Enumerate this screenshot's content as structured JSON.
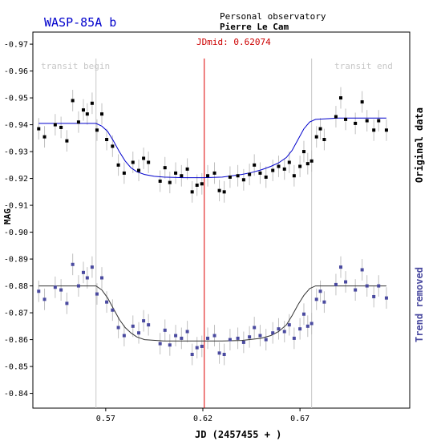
{
  "chart_data": {
    "type": "scatter",
    "title": "WASP-85A b",
    "observer_label": "Personal observatory",
    "observer_name": "Pierre Le Cam",
    "jdmid_label": "JDmid: 0.62074",
    "jdmid": 0.62074,
    "transit_begin_label": "transit begin",
    "transit_end_label": "transit end",
    "transit_begin": 0.565,
    "transit_end": 0.676,
    "xlabel": "JD (2457455 + )",
    "ylabel": "MAG",
    "xlim": [
      0.5325,
      0.7265
    ],
    "ylim": [
      -0.9745,
      -0.8345
    ],
    "x_ticks": [
      0.57,
      0.62,
      0.67
    ],
    "x_tick_labels": [
      "0.57",
      "0.62",
      "0.67"
    ],
    "y_ticks": [
      -0.97,
      -0.96,
      -0.95,
      -0.94,
      -0.93,
      -0.92,
      -0.91,
      -0.9,
      -0.89,
      -0.88,
      -0.87,
      -0.86,
      -0.85,
      -0.84
    ],
    "y_tick_labels": [
      "-0.97",
      "-0.96",
      "-0.95",
      "-0.94",
      "-0.93",
      "-0.92",
      "-0.91",
      "-0.90",
      "-0.89",
      "-0.88",
      "-0.87",
      "-0.86",
      "-0.85",
      "-0.84"
    ],
    "colors": {
      "original_points": "#000000",
      "original_model": "#0000cc",
      "detrended_points": "#4a4aa0",
      "detrended_model": "#333333",
      "jdmid_line": "#dd0000",
      "transit_lines": "#c8c8c8",
      "error_bars": "#c0c0c0",
      "title": "#0000cc",
      "jdmid_text": "#cc0000",
      "right_label_original": "#000000",
      "right_label_detrended": "#4a4aa0"
    },
    "error_bar": 0.004,
    "series": [
      {
        "name": "Original data",
        "marker": "square",
        "points": [
          [
            0.5355,
            -0.9385
          ],
          [
            0.5385,
            -0.9355
          ],
          [
            0.544,
            -0.94
          ],
          [
            0.547,
            -0.939
          ],
          [
            0.55,
            -0.934
          ],
          [
            0.553,
            -0.949
          ],
          [
            0.556,
            -0.941
          ],
          [
            0.5585,
            -0.9455
          ],
          [
            0.5605,
            -0.944
          ],
          [
            0.563,
            -0.948
          ],
          [
            0.5655,
            -0.938
          ],
          [
            0.568,
            -0.944
          ],
          [
            0.5705,
            -0.9345
          ],
          [
            0.5735,
            -0.932
          ],
          [
            0.5765,
            -0.925
          ],
          [
            0.5795,
            -0.922
          ],
          [
            0.584,
            -0.926
          ],
          [
            0.587,
            -0.923
          ],
          [
            0.5895,
            -0.9275
          ],
          [
            0.592,
            -0.926
          ],
          [
            0.598,
            -0.919
          ],
          [
            0.6005,
            -0.924
          ],
          [
            0.603,
            -0.9185
          ],
          [
            0.606,
            -0.922
          ],
          [
            0.609,
            -0.921
          ],
          [
            0.612,
            -0.9235
          ],
          [
            0.6145,
            -0.915
          ],
          [
            0.617,
            -0.9175
          ],
          [
            0.6195,
            -0.918
          ],
          [
            0.6225,
            -0.921
          ],
          [
            0.626,
            -0.922
          ],
          [
            0.6285,
            -0.9155
          ],
          [
            0.631,
            -0.915
          ],
          [
            0.634,
            -0.9205
          ],
          [
            0.638,
            -0.921
          ],
          [
            0.641,
            -0.9195
          ],
          [
            0.644,
            -0.9215
          ],
          [
            0.6465,
            -0.925
          ],
          [
            0.6495,
            -0.922
          ],
          [
            0.6525,
            -0.9205
          ],
          [
            0.656,
            -0.923
          ],
          [
            0.659,
            -0.9245
          ],
          [
            0.662,
            -0.9235
          ],
          [
            0.6645,
            -0.926
          ],
          [
            0.667,
            -0.921
          ],
          [
            0.67,
            -0.9245
          ],
          [
            0.672,
            -0.93
          ],
          [
            0.674,
            -0.9255
          ],
          [
            0.676,
            -0.9265
          ],
          [
            0.6785,
            -0.9355
          ],
          [
            0.6805,
            -0.9385
          ],
          [
            0.6825,
            -0.9345
          ],
          [
            0.6885,
            -0.943
          ],
          [
            0.691,
            -0.95
          ],
          [
            0.6935,
            -0.942
          ],
          [
            0.6985,
            -0.9405
          ],
          [
            0.702,
            -0.9485
          ],
          [
            0.7045,
            -0.9415
          ],
          [
            0.708,
            -0.938
          ],
          [
            0.7105,
            -0.9415
          ],
          [
            0.7145,
            -0.938
          ]
        ]
      },
      {
        "name": "Trend removed",
        "marker": "square",
        "points": [
          [
            0.5355,
            -0.878
          ],
          [
            0.5385,
            -0.875
          ],
          [
            0.544,
            -0.8795
          ],
          [
            0.547,
            -0.8785
          ],
          [
            0.55,
            -0.8735
          ],
          [
            0.553,
            -0.888
          ],
          [
            0.556,
            -0.88
          ],
          [
            0.5585,
            -0.885
          ],
          [
            0.5605,
            -0.883
          ],
          [
            0.563,
            -0.887
          ],
          [
            0.5655,
            -0.877
          ],
          [
            0.568,
            -0.883
          ],
          [
            0.5705,
            -0.874
          ],
          [
            0.5735,
            -0.871
          ],
          [
            0.5765,
            -0.8645
          ],
          [
            0.5795,
            -0.8615
          ],
          [
            0.584,
            -0.865
          ],
          [
            0.587,
            -0.8625
          ],
          [
            0.5895,
            -0.867
          ],
          [
            0.592,
            -0.8655
          ],
          [
            0.598,
            -0.8585
          ],
          [
            0.6005,
            -0.8635
          ],
          [
            0.603,
            -0.858
          ],
          [
            0.606,
            -0.8615
          ],
          [
            0.609,
            -0.8605
          ],
          [
            0.612,
            -0.863
          ],
          [
            0.6145,
            -0.8545
          ],
          [
            0.617,
            -0.857
          ],
          [
            0.6195,
            -0.8575
          ],
          [
            0.6225,
            -0.8605
          ],
          [
            0.626,
            -0.8615
          ],
          [
            0.6285,
            -0.855
          ],
          [
            0.631,
            -0.8545
          ],
          [
            0.634,
            -0.86
          ],
          [
            0.638,
            -0.8605
          ],
          [
            0.641,
            -0.859
          ],
          [
            0.644,
            -0.861
          ],
          [
            0.6465,
            -0.8645
          ],
          [
            0.6495,
            -0.8615
          ],
          [
            0.6525,
            -0.86
          ],
          [
            0.656,
            -0.8625
          ],
          [
            0.659,
            -0.864
          ],
          [
            0.662,
            -0.863
          ],
          [
            0.6645,
            -0.8655
          ],
          [
            0.667,
            -0.8605
          ],
          [
            0.67,
            -0.864
          ],
          [
            0.672,
            -0.8695
          ],
          [
            0.674,
            -0.865
          ],
          [
            0.676,
            -0.866
          ],
          [
            0.6785,
            -0.875
          ],
          [
            0.6805,
            -0.878
          ],
          [
            0.6825,
            -0.874
          ],
          [
            0.6885,
            -0.8805
          ],
          [
            0.691,
            -0.887
          ],
          [
            0.6935,
            -0.8815
          ],
          [
            0.6985,
            -0.8785
          ],
          [
            0.702,
            -0.886
          ],
          [
            0.7045,
            -0.88
          ],
          [
            0.708,
            -0.876
          ],
          [
            0.7105,
            -0.88
          ],
          [
            0.7145,
            -0.8755
          ]
        ]
      }
    ],
    "models": [
      {
        "name": "Original data",
        "x": [
          0.5355,
          0.565,
          0.568,
          0.571,
          0.574,
          0.577,
          0.58,
          0.583,
          0.586,
          0.59,
          0.595,
          0.6,
          0.61,
          0.62,
          0.63,
          0.64,
          0.645,
          0.65,
          0.655,
          0.659,
          0.663,
          0.666,
          0.669,
          0.672,
          0.675,
          0.678,
          0.69,
          0.7145
        ],
        "y": [
          -0.9405,
          -0.9405,
          -0.9395,
          -0.9375,
          -0.934,
          -0.93,
          -0.9265,
          -0.924,
          -0.9225,
          -0.9215,
          -0.9208,
          -0.9205,
          -0.9203,
          -0.9203,
          -0.9205,
          -0.9215,
          -0.9222,
          -0.9232,
          -0.9245,
          -0.9258,
          -0.9278,
          -0.9305,
          -0.9345,
          -0.9385,
          -0.941,
          -0.942,
          -0.9425,
          -0.9425
        ]
      },
      {
        "name": "Trend removed",
        "x": [
          0.5355,
          0.565,
          0.568,
          0.571,
          0.574,
          0.577,
          0.58,
          0.583,
          0.586,
          0.59,
          0.6,
          0.61,
          0.62,
          0.63,
          0.64,
          0.65,
          0.655,
          0.659,
          0.663,
          0.666,
          0.669,
          0.672,
          0.675,
          0.678,
          0.69,
          0.7145
        ],
        "y": [
          -0.88,
          -0.88,
          -0.8785,
          -0.8755,
          -0.8715,
          -0.8675,
          -0.8645,
          -0.8625,
          -0.861,
          -0.86,
          -0.8595,
          -0.8595,
          -0.8595,
          -0.8595,
          -0.8597,
          -0.8605,
          -0.8615,
          -0.863,
          -0.8655,
          -0.869,
          -0.873,
          -0.8765,
          -0.879,
          -0.88,
          -0.88,
          -0.88
        ]
      }
    ]
  }
}
